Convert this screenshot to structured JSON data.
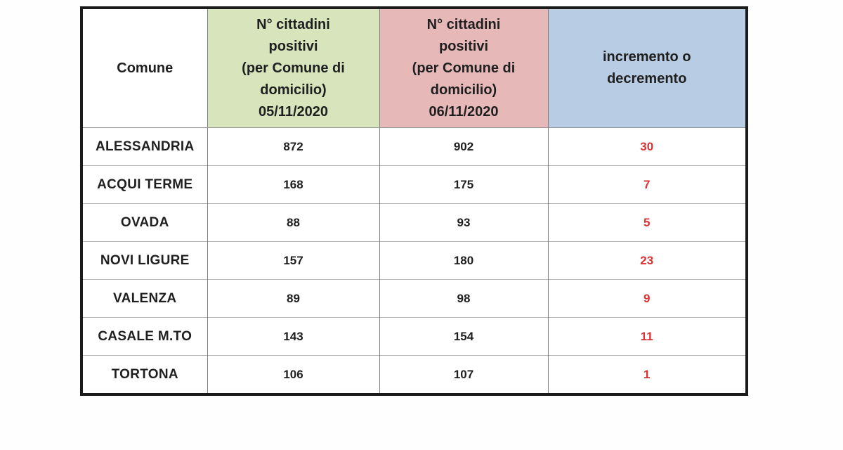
{
  "table": {
    "headers": [
      {
        "label": "Comune",
        "bg": "#ffffff"
      },
      {
        "label": "N° cittadini\npositivi\n(per Comune di\ndomicilio)\n05/11/2020",
        "bg": "#d7e4bc"
      },
      {
        "label": "N° cittadini\npositivi\n(per Comune di\ndomicilio)\n06/11/2020",
        "bg": "#e6b9b8"
      },
      {
        "label": "incremento o\ndecremento",
        "bg": "#b8cce4"
      }
    ],
    "rows": [
      {
        "comune": "ALESSANDRIA",
        "positivi_05": "872",
        "positivi_06": "902",
        "delta": "30"
      },
      {
        "comune": "ACQUI TERME",
        "positivi_05": "168",
        "positivi_06": "175",
        "delta": "7"
      },
      {
        "comune": "OVADA",
        "positivi_05": "88",
        "positivi_06": "93",
        "delta": "5"
      },
      {
        "comune": "NOVI LIGURE",
        "positivi_05": "157",
        "positivi_06": "180",
        "delta": "23"
      },
      {
        "comune": "VALENZA",
        "positivi_05": "89",
        "positivi_06": "98",
        "delta": "9"
      },
      {
        "comune": "CASALE M.TO",
        "positivi_05": "143",
        "positivi_06": "154",
        "delta": "11"
      },
      {
        "comune": "TORTONA",
        "positivi_05": "106",
        "positivi_06": "107",
        "delta": "1"
      }
    ],
    "colors": {
      "header_green": "#d7e4bc",
      "header_rose": "#e6b9b8",
      "header_blue": "#b8cce4",
      "delta_red": "#d93333",
      "outer_border": "#1b1b1b",
      "grid_vertical": "#7f7f7f",
      "grid_horizontal": "#b8b8b8",
      "text_dark": "#1f1f1f"
    }
  }
}
